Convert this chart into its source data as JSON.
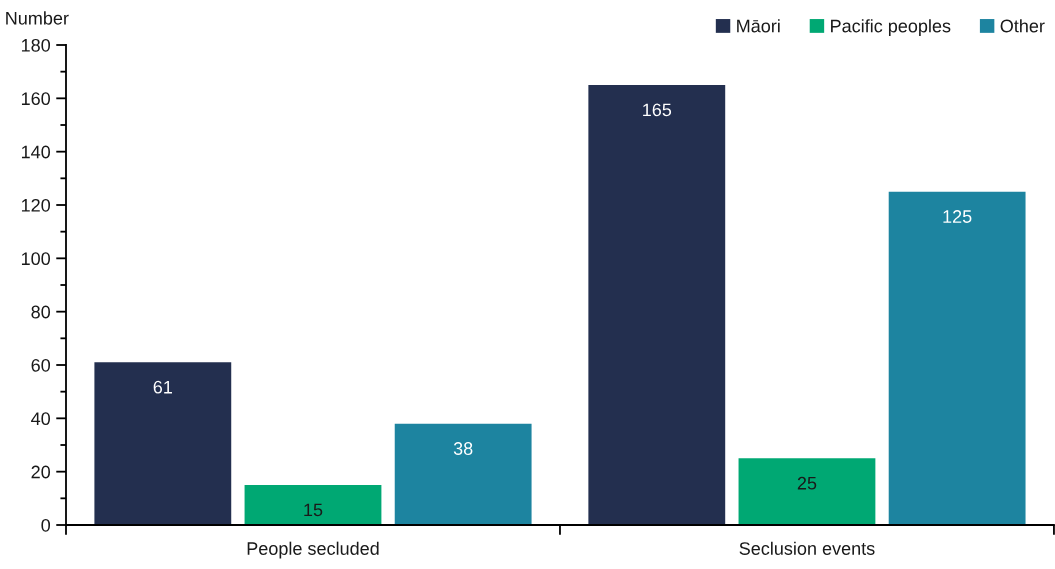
{
  "chart_data": {
    "type": "bar",
    "ylabel": "Number",
    "categories": [
      "People secluded",
      "Seclusion events"
    ],
    "series": [
      {
        "name": "Māori",
        "color": "#232f4f",
        "values": [
          61,
          165
        ]
      },
      {
        "name": "Pacific peoples",
        "color": "#00a873",
        "values": [
          15,
          25
        ]
      },
      {
        "name": "Other",
        "color": "#1d84a0",
        "values": [
          38,
          125
        ]
      }
    ],
    "ylim": [
      0,
      180
    ],
    "yticks": [
      0,
      20,
      40,
      60,
      80,
      100,
      120,
      140,
      160,
      180
    ],
    "data_labels": true,
    "legend": "top right",
    "grid": false
  }
}
